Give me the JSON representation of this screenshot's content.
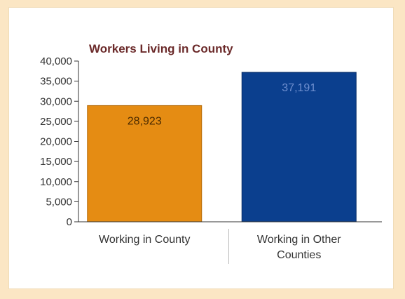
{
  "chart_data": {
    "type": "bar",
    "title": "Workers Living in County",
    "categories": [
      [
        "Working in County"
      ],
      [
        "Working in Other",
        "Counties"
      ]
    ],
    "values": [
      28923,
      37191
    ],
    "value_labels": [
      "28,923",
      "37,191"
    ],
    "colors": [
      "#e58c13",
      "#0b3f8e"
    ],
    "value_label_colors": [
      "#4a2a00",
      "#6f8fcf"
    ],
    "title_color": "#6b2a2a",
    "ylim": [
      0,
      40000
    ],
    "yticks": [
      0,
      5000,
      10000,
      15000,
      20000,
      25000,
      30000,
      35000,
      40000
    ],
    "ytick_labels": [
      "0",
      "5,000",
      "10,000",
      "15,000",
      "20,000",
      "25,000",
      "30,000",
      "35,000",
      "40,000"
    ],
    "xlabel": "",
    "ylabel": "",
    "grid": false,
    "legend": "none"
  }
}
